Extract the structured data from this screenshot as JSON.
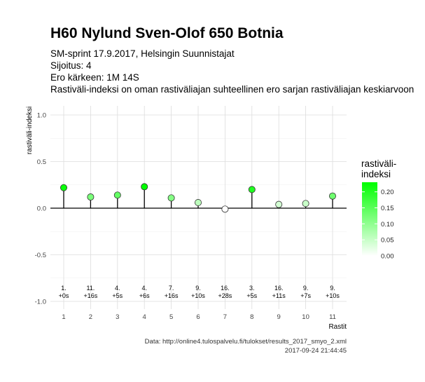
{
  "title": "H60 Nylund Sven-Olof 650 Botnia",
  "subtitle_lines": [
    "SM-sprint 17.9.2017, Helsingin Suunnistajat",
    "Sijoitus: 4",
    "Ero kärkeen: 1M 14S",
    "Rastiväli-indeksi on oman rastiväliajan suhteellinen ero sarjan rastiväliajan keskiarvoon"
  ],
  "caption_lines": [
    "Data: http://online4.tulospalvelu.fi/tulokset/results_2017_smyo_2.xml",
    "2017-09-24 21:44:45"
  ],
  "colors": {
    "high": "#00ff00",
    "low": "#ffffff",
    "zero_line": "#000000",
    "grid_major": "#dcdcdc",
    "grid_minor": "#efefef"
  },
  "chart_data": {
    "type": "scatter",
    "style": "lollipop",
    "xlabel": "Rastit",
    "ylabel": "rastiväli-indeksi",
    "x_ticks": [
      "1",
      "2",
      "3",
      "4",
      "5",
      "6",
      "7",
      "8",
      "9",
      "10",
      "11"
    ],
    "y_ticks": [
      "-1.0",
      "-0.5",
      "0.0",
      "0.5",
      "1.0"
    ],
    "ylim": [
      -1.0,
      1.0
    ],
    "grid": true,
    "points": [
      {
        "x": 1,
        "y": 0.22,
        "label": [
          "1.",
          "+0s"
        ]
      },
      {
        "x": 2,
        "y": 0.12,
        "label": [
          "11.",
          "+16s"
        ]
      },
      {
        "x": 3,
        "y": 0.14,
        "label": [
          "4.",
          "+5s"
        ]
      },
      {
        "x": 4,
        "y": 0.23,
        "label": [
          "4.",
          "+6s"
        ]
      },
      {
        "x": 5,
        "y": 0.11,
        "label": [
          "7.",
          "+16s"
        ]
      },
      {
        "x": 6,
        "y": 0.06,
        "label": [
          "9.",
          "+10s"
        ]
      },
      {
        "x": 7,
        "y": -0.01,
        "label": [
          "16.",
          "+28s"
        ]
      },
      {
        "x": 8,
        "y": 0.2,
        "label": [
          "3.",
          "+5s"
        ]
      },
      {
        "x": 9,
        "y": 0.04,
        "label": [
          "16.",
          "+11s"
        ]
      },
      {
        "x": 10,
        "y": 0.05,
        "label": [
          "9.",
          "+7s"
        ]
      },
      {
        "x": 11,
        "y": 0.13,
        "label": [
          "9.",
          "+10s"
        ]
      }
    ],
    "legend": {
      "title_lines": [
        "rastiväli-",
        "indeksi"
      ],
      "ticks": [
        "0.20",
        "0.15",
        "0.10",
        "0.05",
        "0.00"
      ],
      "range": [
        0.0,
        0.23
      ],
      "position": "right"
    }
  }
}
